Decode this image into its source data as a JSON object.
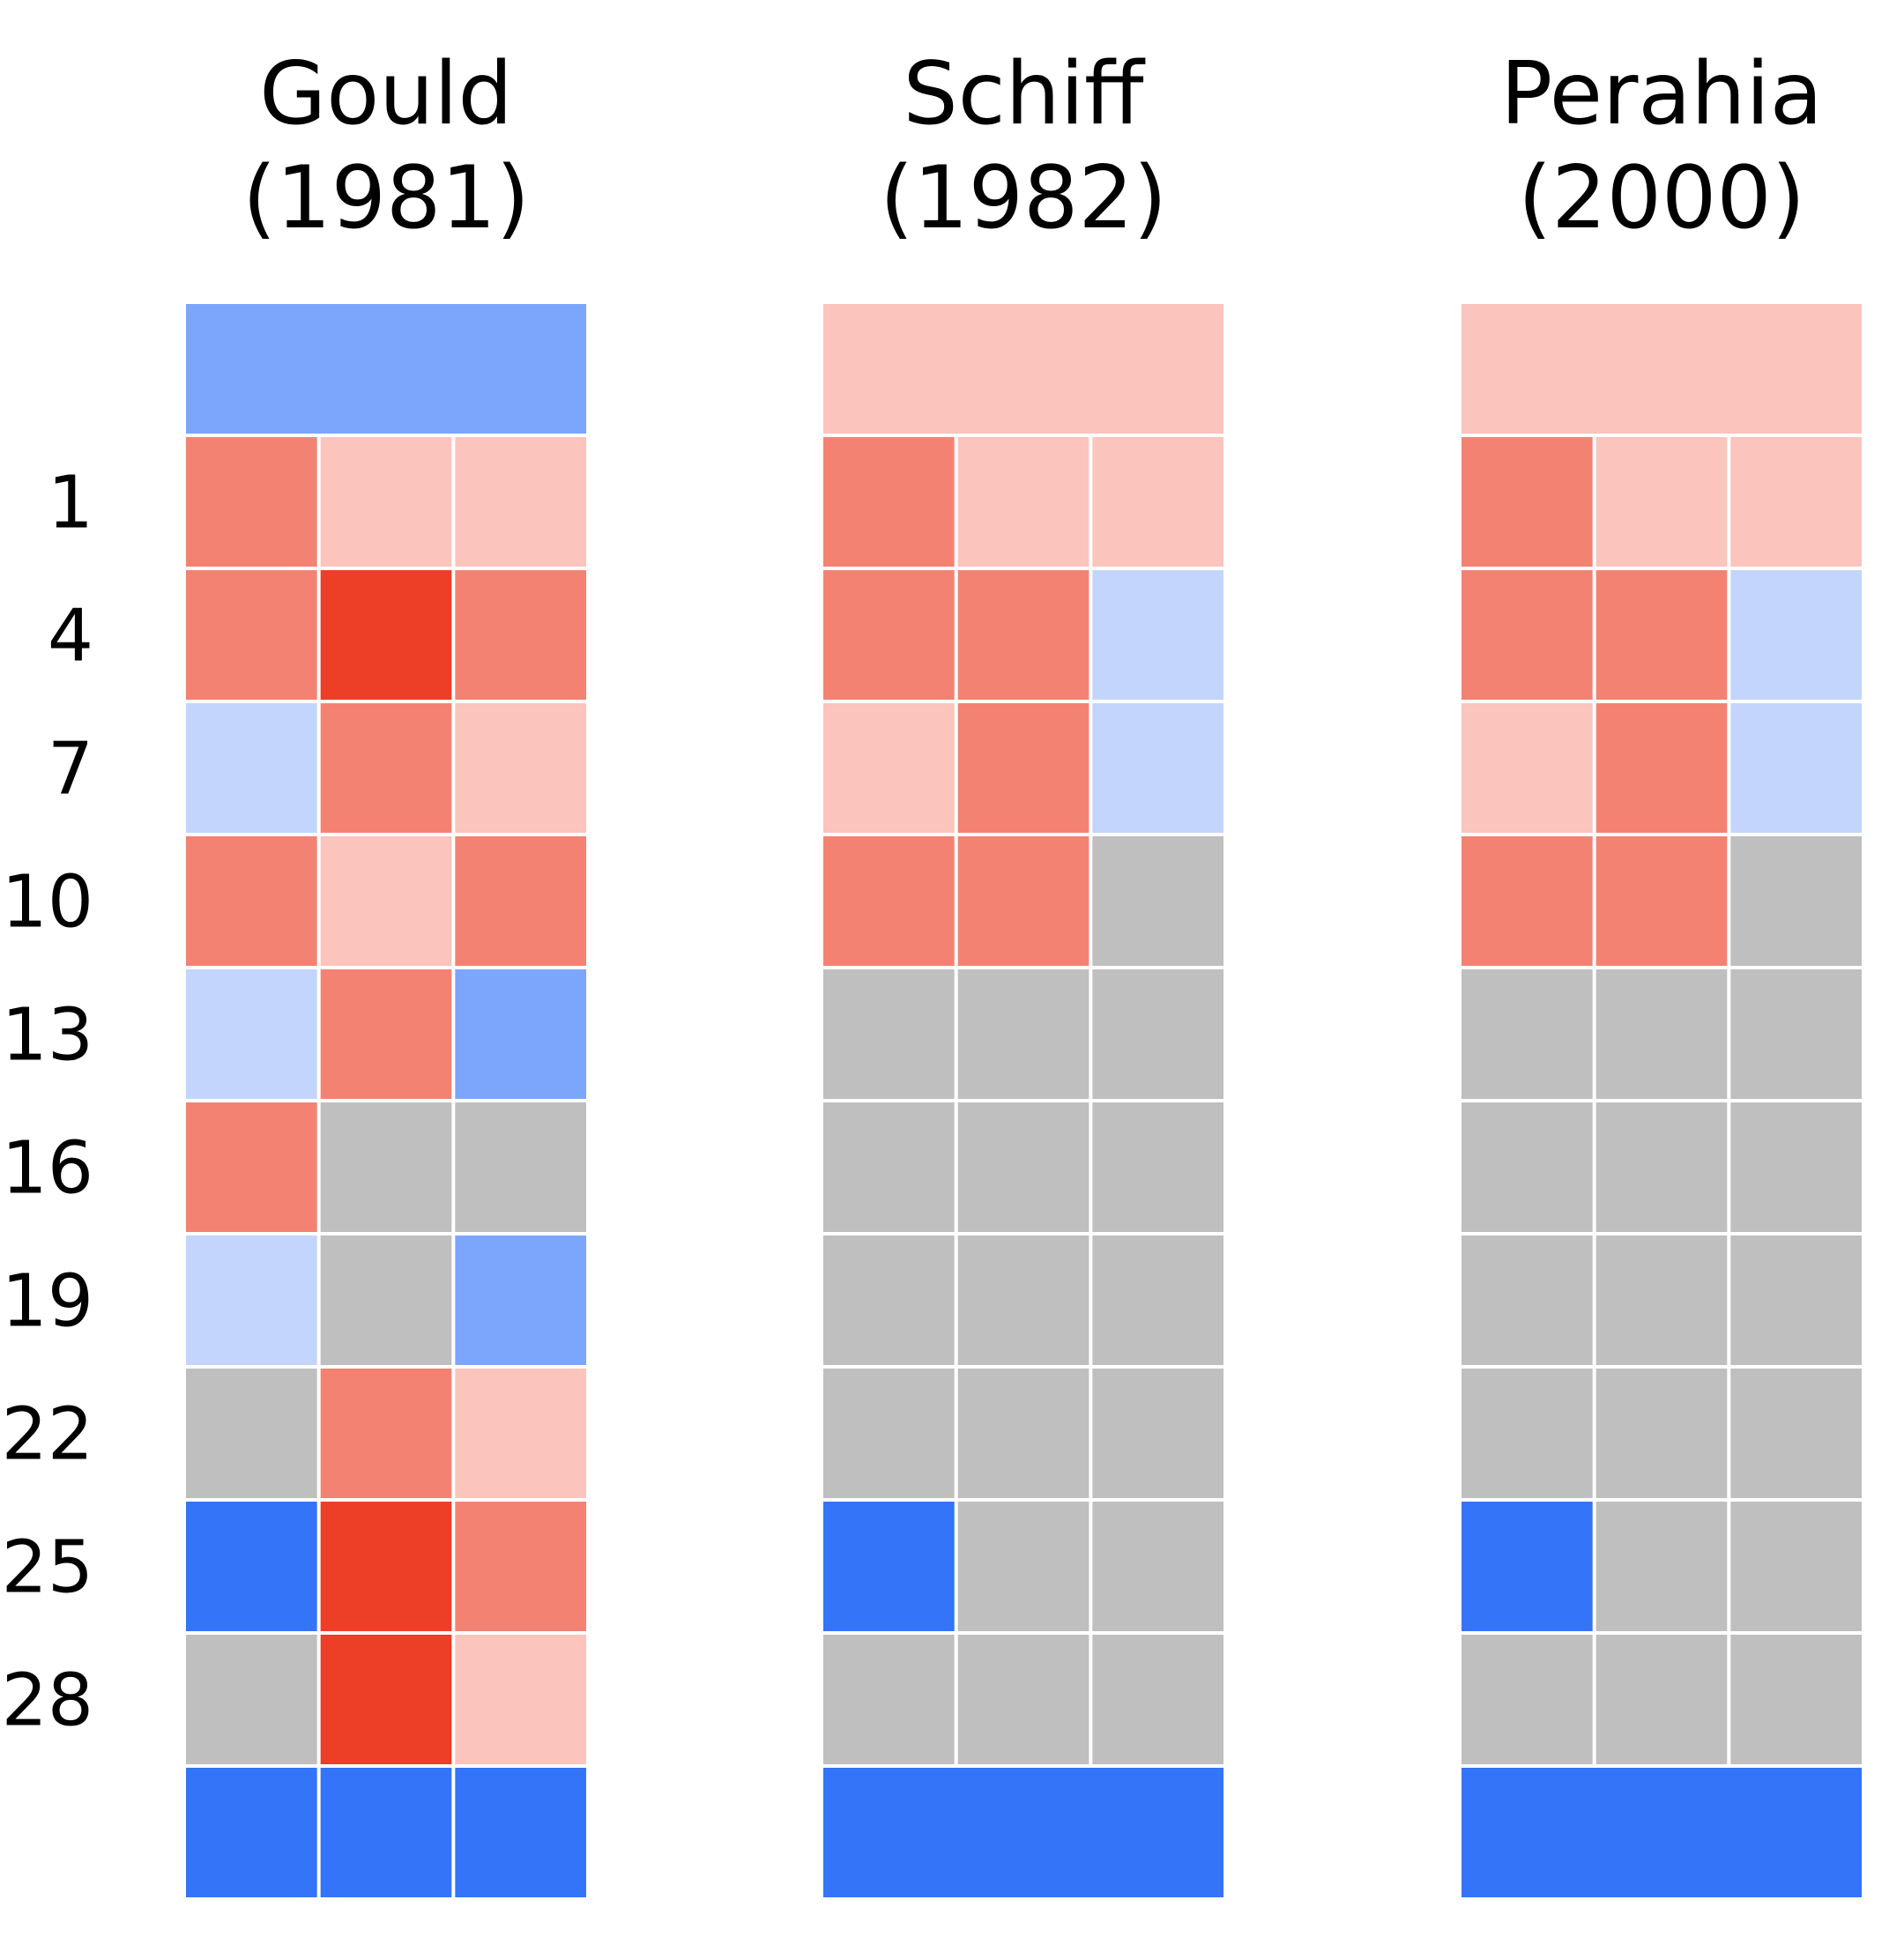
{
  "chart_data": {
    "type": "heatmap",
    "palette": {
      "R2": "#ed3e27",
      "R1": "#f48273",
      "R0": "#fbc4bd",
      "B0": "#c3d5fc",
      "B1": "#7ba6fb",
      "B2": "#3374f9",
      "N": "#bfbfbf"
    },
    "row_labels": [
      "",
      "1",
      "4",
      "7",
      "10",
      "13",
      "16",
      "19",
      "22",
      "25",
      "28",
      ""
    ],
    "panels": [
      {
        "title_line1": "Gould",
        "title_line2": "(1981)",
        "rows": [
          [
            "B1"
          ],
          [
            "R1",
            "R0",
            "R0"
          ],
          [
            "R1",
            "R2",
            "R1"
          ],
          [
            "B0",
            "R1",
            "R0"
          ],
          [
            "R1",
            "R0",
            "R1"
          ],
          [
            "B0",
            "R1",
            "B1"
          ],
          [
            "R1",
            "N",
            "N"
          ],
          [
            "B0",
            "N",
            "B1"
          ],
          [
            "N",
            "R1",
            "R0"
          ],
          [
            "B2",
            "R2",
            "R1"
          ],
          [
            "N",
            "R2",
            "R0"
          ],
          [
            "B2",
            "B2",
            "B2"
          ]
        ]
      },
      {
        "title_line1": "Schiff",
        "title_line2": "(1982)",
        "rows": [
          [
            "R0"
          ],
          [
            "R1",
            "R0",
            "R0"
          ],
          [
            "R1",
            "R1",
            "B0"
          ],
          [
            "R0",
            "R1",
            "B0"
          ],
          [
            "R1",
            "R1",
            "N"
          ],
          [
            "N",
            "N",
            "N"
          ],
          [
            "N",
            "N",
            "N"
          ],
          [
            "N",
            "N",
            "N"
          ],
          [
            "N",
            "N",
            "N"
          ],
          [
            "B2",
            "N",
            "N"
          ],
          [
            "N",
            "N",
            "N"
          ],
          [
            "B2"
          ]
        ]
      },
      {
        "title_line1": "Perahia",
        "title_line2": "(2000)",
        "rows": [
          [
            "R0"
          ],
          [
            "R1",
            "R0",
            "R0"
          ],
          [
            "R1",
            "R1",
            "B0"
          ],
          [
            "R0",
            "R1",
            "B0"
          ],
          [
            "R1",
            "R1",
            "N"
          ],
          [
            "N",
            "N",
            "N"
          ],
          [
            "N",
            "N",
            "N"
          ],
          [
            "N",
            "N",
            "N"
          ],
          [
            "N",
            "N",
            "N"
          ],
          [
            "B2",
            "N",
            "N"
          ],
          [
            "N",
            "N",
            "N"
          ],
          [
            "B2"
          ]
        ]
      }
    ]
  }
}
